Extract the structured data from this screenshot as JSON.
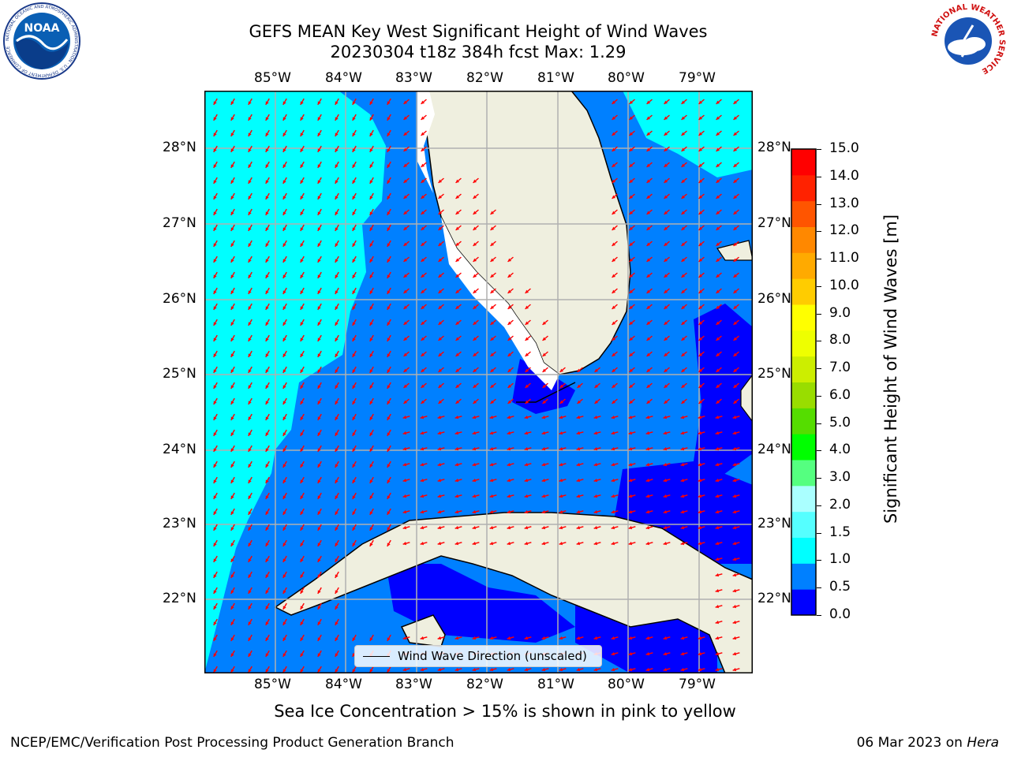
{
  "title": {
    "line1": "GEFS MEAN Key West Significant Height of Wind Waves",
    "line2": "20230304 t18z 384h fcst   Max: 1.29"
  },
  "map": {
    "lon_labels": [
      "85°W",
      "84°W",
      "83°W",
      "82°W",
      "81°W",
      "80°W",
      "79°W"
    ],
    "lat_labels": [
      "28°N",
      "27°N",
      "26°N",
      "25°N",
      "24°N",
      "23°N",
      "22°N"
    ],
    "legend_label": "Wind Wave Direction (unscaled)",
    "colors": {
      "land": "#efefdf",
      "coast": "#000000",
      "grid": "#b0b0b0",
      "arrow": "#ff0000",
      "band_0_0_5": "#0000ff",
      "band_0_5_1_0": "#0080ff",
      "band_1_0_1_5": "#00ffff"
    }
  },
  "colorbar": {
    "label": "Significant Height of Wind Waves [m]",
    "ticks": [
      "15.0",
      "14.0",
      "13.0",
      "12.0",
      "11.0",
      "10.0",
      "9.0",
      "8.0",
      "7.0",
      "6.0",
      "5.0",
      "4.0",
      "3.0",
      "2.0",
      "1.5",
      "1.0",
      "0.5",
      "0.0"
    ],
    "colors": [
      "#0000ff",
      "#0080ff",
      "#00ffff",
      "#55ffff",
      "#aaffff",
      "#55ff80",
      "#00ff00",
      "#55dd00",
      "#99dd00",
      "#ccee00",
      "#eeff00",
      "#ffff00",
      "#ffcc00",
      "#ffaa00",
      "#ff8800",
      "#ff5500",
      "#ff2200",
      "#ff0000"
    ]
  },
  "caption": "Sea Ice Concentration > 15% is shown in pink to yellow",
  "footer": {
    "left": "NCEP/EMC/Verification Post Processing Product Generation Branch",
    "right_date": "06 Mar 2023 on ",
    "right_host": "Hera"
  },
  "logos": {
    "noaa_text": "NOAA",
    "noaa_ring": "NATIONAL OCEANIC AND ATMOSPHERIC ADMINISTRATION · U.S. DEPARTMENT OF COMMERCE",
    "nws_ring": "NATIONAL WEATHER SERVICE"
  }
}
